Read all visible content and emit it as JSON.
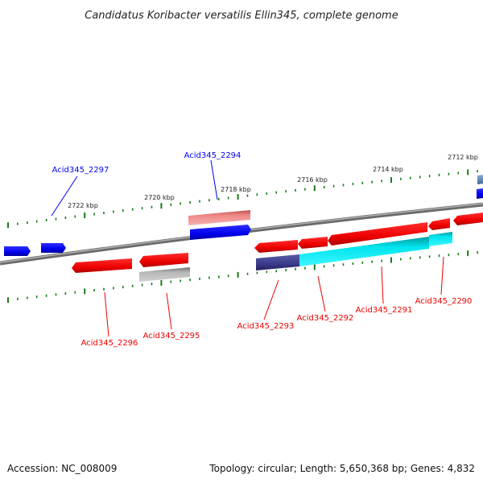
{
  "title": "Candidatus Koribacter versatilis Ellin345, complete genome",
  "accession": "Accession: NC_008009",
  "summary": "Topology: circular; Length: 5,650,368 bp; Genes: 4,832",
  "kbp_ticks": [
    "2722 kbp",
    "2720 kbp",
    "2718 kbp",
    "2716 kbp",
    "2714 kbp",
    "2712 kbp"
  ],
  "gene_labels": {
    "forward": [
      "Acid345_2297",
      "Acid345_2294"
    ],
    "reverse": [
      "Acid345_2296",
      "Acid345_2295",
      "Acid345_2293",
      "Acid345_2292",
      "Acid345_2291",
      "Acid345_2290"
    ]
  },
  "colors": {
    "forward": "#0000ee",
    "reverse": "#ee0000",
    "backbone": "#808080",
    "ticks": "#1a7a1a",
    "cyan": "#00e5ee",
    "indigo": "#3a3a8a",
    "grey_gene": "#b0b0b0",
    "pink_gene": "#ee8080"
  }
}
